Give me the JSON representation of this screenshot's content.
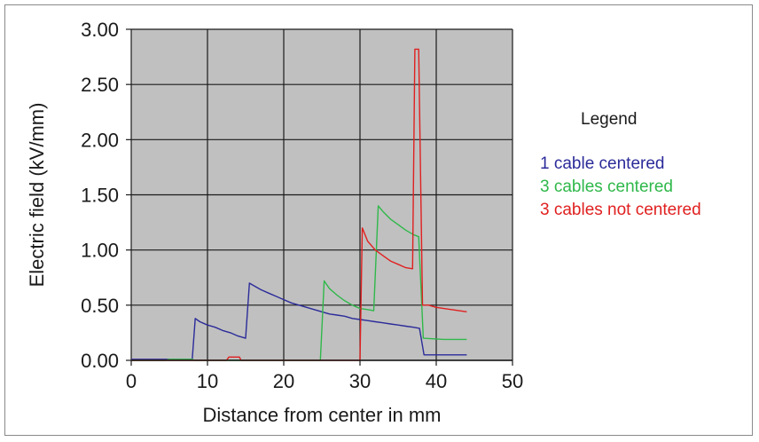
{
  "chart_data": {
    "type": "line",
    "xlabel": "Distance from center in mm",
    "ylabel": "Electric field (kV/mm)",
    "xlim": [
      0,
      50
    ],
    "ylim": [
      0,
      3
    ],
    "x_ticks": [
      "0",
      "10",
      "20",
      "30",
      "40",
      "50"
    ],
    "y_ticks": [
      "0.00",
      "0.50",
      "1.00",
      "1.50",
      "2.00",
      "2.50",
      "3.00"
    ],
    "grid": true,
    "plot_background": "#c0c0c0",
    "legend": {
      "title": "Legend",
      "position": "right"
    },
    "series": [
      {
        "name": "1 cable centered",
        "color": "#2b2b9a",
        "points": [
          [
            0,
            0.01
          ],
          [
            8.0,
            0.01
          ],
          [
            8.4,
            0.38
          ],
          [
            9,
            0.35
          ],
          [
            10,
            0.32
          ],
          [
            11,
            0.3
          ],
          [
            12,
            0.27
          ],
          [
            13,
            0.25
          ],
          [
            14,
            0.22
          ],
          [
            15.0,
            0.2
          ],
          [
            15.5,
            0.7
          ],
          [
            16,
            0.68
          ],
          [
            17,
            0.64
          ],
          [
            18,
            0.61
          ],
          [
            19,
            0.58
          ],
          [
            20,
            0.55
          ],
          [
            21,
            0.52
          ],
          [
            22,
            0.5
          ],
          [
            23,
            0.48
          ],
          [
            24,
            0.46
          ],
          [
            25,
            0.44
          ],
          [
            26,
            0.42
          ],
          [
            27,
            0.41
          ],
          [
            28,
            0.4
          ],
          [
            29,
            0.38
          ],
          [
            30,
            0.37
          ],
          [
            31,
            0.36
          ],
          [
            32,
            0.35
          ],
          [
            33,
            0.34
          ],
          [
            34,
            0.33
          ],
          [
            35,
            0.32
          ],
          [
            36,
            0.31
          ],
          [
            37,
            0.3
          ],
          [
            37.8,
            0.29
          ],
          [
            38.4,
            0.05
          ],
          [
            44,
            0.05
          ]
        ]
      },
      {
        "name": "3 cables centered",
        "color": "#2fb84a",
        "points": [
          [
            0,
            0.0
          ],
          [
            4.5,
            0.0
          ],
          [
            5,
            0.01
          ],
          [
            8.0,
            0.01
          ],
          [
            8.3,
            0.0
          ],
          [
            24.8,
            0.0
          ],
          [
            25.3,
            0.72
          ],
          [
            26,
            0.65
          ],
          [
            27,
            0.59
          ],
          [
            28,
            0.54
          ],
          [
            29,
            0.5
          ],
          [
            30,
            0.47
          ],
          [
            31,
            0.46
          ],
          [
            31.8,
            0.45
          ],
          [
            32.4,
            1.4
          ],
          [
            33,
            1.35
          ],
          [
            34,
            1.28
          ],
          [
            35,
            1.23
          ],
          [
            36,
            1.18
          ],
          [
            37,
            1.14
          ],
          [
            37.7,
            1.12
          ],
          [
            38.3,
            0.2
          ],
          [
            41,
            0.19
          ],
          [
            44,
            0.19
          ]
        ]
      },
      {
        "name": "3 cables not centered",
        "color": "#e02020",
        "points": [
          [
            0,
            0.0
          ],
          [
            12.5,
            0.0
          ],
          [
            12.8,
            0.03
          ],
          [
            14.2,
            0.03
          ],
          [
            14.4,
            0.0
          ],
          [
            30.0,
            0.0
          ],
          [
            30.3,
            1.2
          ],
          [
            31,
            1.08
          ],
          [
            32,
            1.0
          ],
          [
            33,
            0.95
          ],
          [
            34,
            0.9
          ],
          [
            35,
            0.87
          ],
          [
            36,
            0.84
          ],
          [
            36.9,
            0.83
          ],
          [
            37.2,
            2.82
          ],
          [
            37.7,
            2.82
          ],
          [
            38.2,
            0.5
          ],
          [
            39,
            0.5
          ],
          [
            40,
            0.48
          ],
          [
            41,
            0.47
          ],
          [
            42,
            0.46
          ],
          [
            43,
            0.45
          ],
          [
            44,
            0.44
          ]
        ]
      }
    ]
  }
}
